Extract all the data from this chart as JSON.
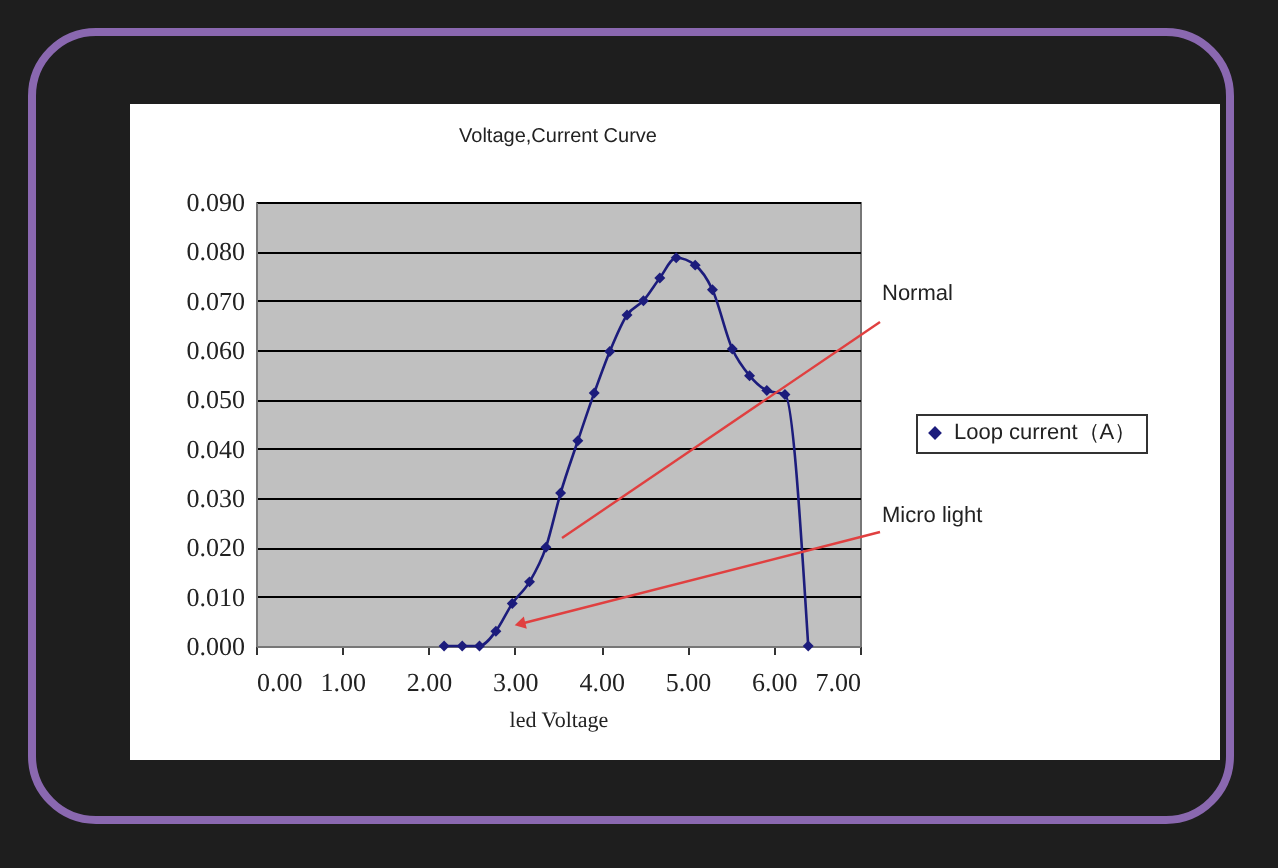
{
  "chart_data": {
    "type": "line",
    "title": "Voltage,Current Curve",
    "xlabel": "led Voltage",
    "x": [
      2.18,
      2.39,
      2.59,
      2.78,
      2.97,
      3.17,
      3.36,
      3.53,
      3.73,
      3.92,
      4.1,
      4.3,
      4.49,
      4.68,
      4.87,
      5.09,
      5.29,
      5.52,
      5.72,
      5.92,
      6.13,
      6.4
    ],
    "series": [
      {
        "name": "Loop current（A）",
        "color": "#1c1c7c",
        "values": [
          0.0,
          0.0,
          0.0,
          0.003,
          0.0086,
          0.013,
          0.02,
          0.031,
          0.0416,
          0.0513,
          0.0597,
          0.0671,
          0.07,
          0.0746,
          0.0787,
          0.0772,
          0.0722,
          0.0602,
          0.0548,
          0.0518,
          0.051,
          0.0
        ]
      }
    ],
    "xlim": [
      0,
      7
    ],
    "xticks": [
      {
        "value": 0,
        "label": "0.00"
      },
      {
        "value": 1,
        "label": "1.00"
      },
      {
        "value": 2,
        "label": "2.00"
      },
      {
        "value": 3,
        "label": "3.00"
      },
      {
        "value": 4,
        "label": "4.00"
      },
      {
        "value": 5,
        "label": "5.00"
      },
      {
        "value": 6,
        "label": "6.00"
      },
      {
        "value": 7,
        "label": "7.00"
      }
    ],
    "ylim": [
      0,
      0.09
    ],
    "yticks": [
      {
        "value": 0,
        "label": "0.000"
      },
      {
        "value": 0.01,
        "label": "0.010"
      },
      {
        "value": 0.02,
        "label": "0.020"
      },
      {
        "value": 0.03,
        "label": "0.030"
      },
      {
        "value": 0.04,
        "label": "0.040"
      },
      {
        "value": 0.05,
        "label": "0.050"
      },
      {
        "value": 0.06,
        "label": "0.060"
      },
      {
        "value": 0.07,
        "label": "0.070"
      },
      {
        "value": 0.08,
        "label": "0.080"
      },
      {
        "value": 0.09,
        "label": "0.090"
      }
    ],
    "annotations": [
      "Normal",
      "Micro light"
    ],
    "grid": "y",
    "legend": "right",
    "marker": "diamond",
    "line_style": "solid"
  }
}
